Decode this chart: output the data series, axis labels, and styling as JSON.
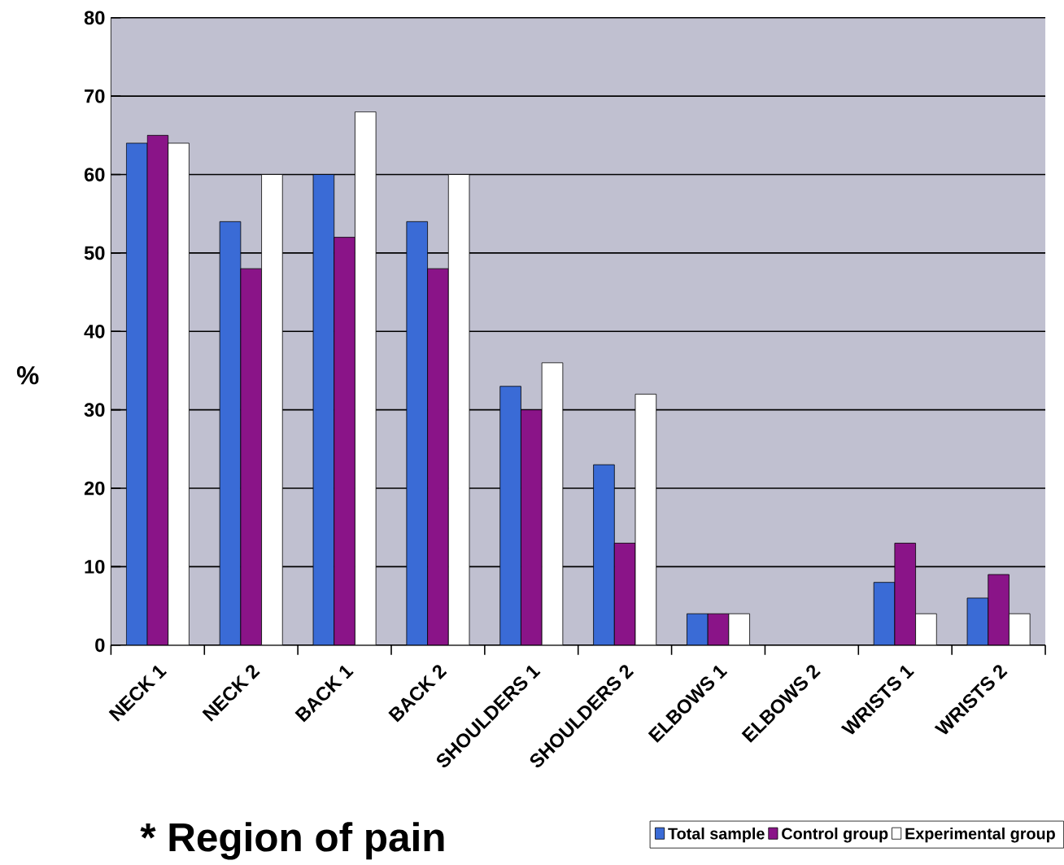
{
  "chart_data": {
    "type": "bar",
    "xlabel": "* Region of pain",
    "ylabel": "%",
    "categories": [
      "NECK 1",
      "NECK 2",
      "BACK 1",
      "BACK 2",
      "SHOULDERS 1",
      "SHOULDERS 2",
      "ELBOWS 1",
      "ELBOWS 2",
      "WRISTS 1",
      "WRISTS 2"
    ],
    "series": [
      {
        "name": "Total sample",
        "color": "#3a6bd6",
        "values": [
          64,
          54,
          60,
          54,
          33,
          23,
          4,
          null,
          8,
          6
        ]
      },
      {
        "name": "Control group",
        "color": "#8a1488",
        "values": [
          65,
          48,
          52,
          48,
          30,
          13,
          4,
          null,
          13,
          9
        ]
      },
      {
        "name": "Experimental group",
        "color": "#ffffff",
        "values": [
          64,
          60,
          68,
          60,
          36,
          32,
          4,
          null,
          4,
          4
        ]
      }
    ],
    "ylim": [
      0,
      80
    ],
    "yticks": [
      0,
      10,
      20,
      30,
      40,
      50,
      60,
      70,
      80
    ],
    "grid": "y",
    "legend": "bottom right"
  }
}
